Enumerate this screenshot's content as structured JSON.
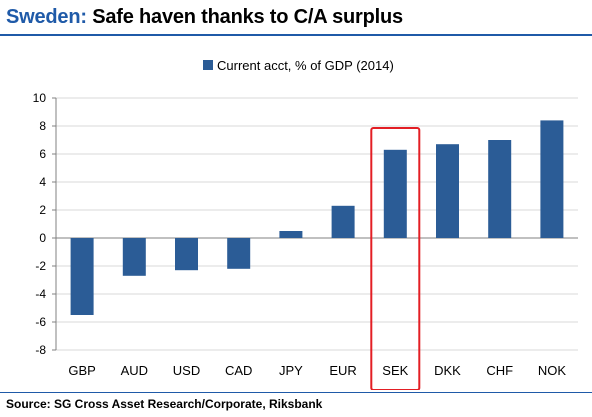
{
  "header": {
    "brand": "Sweden:",
    "subtitle": " Safe haven thanks to C/A surplus"
  },
  "footer": {
    "source": "Source: SG Cross Asset Research/Corporate, Riksbank"
  },
  "colors": {
    "bar": "#2b5c96",
    "highlight": "#e31e24",
    "grid": "#d9d9d9",
    "brand": "#1f5aa8"
  },
  "chart_data": {
    "type": "bar",
    "title": "",
    "xlabel": "",
    "ylabel": "",
    "categories": [
      "GBP",
      "AUD",
      "USD",
      "CAD",
      "JPY",
      "EUR",
      "SEK",
      "DKK",
      "CHF",
      "NOK"
    ],
    "series": [
      {
        "name": "Current acct, % of GDP (2014)",
        "values": [
          -5.5,
          -2.7,
          -2.3,
          -2.2,
          0.5,
          2.3,
          6.3,
          6.7,
          7.0,
          8.4
        ]
      }
    ],
    "ylim": [
      -8,
      10
    ],
    "yticks": [
      -8,
      -6,
      -4,
      -2,
      0,
      2,
      4,
      6,
      8,
      10
    ],
    "grid": true,
    "legend": "top-center",
    "highlight_category": "SEK"
  }
}
